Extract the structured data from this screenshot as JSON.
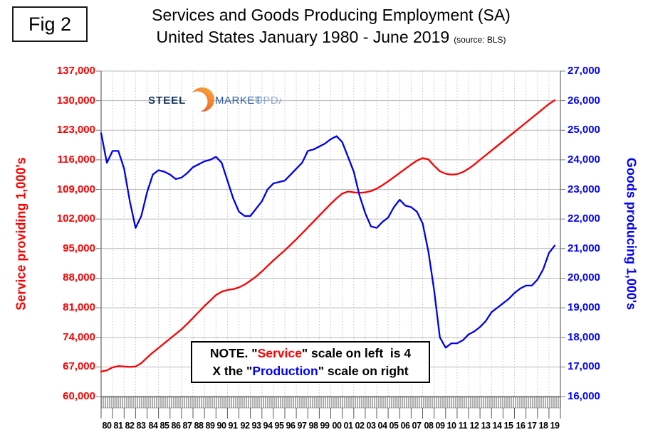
{
  "header": {
    "fig_label": "Fig 2",
    "title_line1": "Services and Goods Producing Employment (SA)",
    "title_line2": "United States January 1980 - June 2019",
    "source": "(source: BLS)"
  },
  "logo": {
    "steel": "STEEL",
    "market": "MARKET",
    "update": "UPDATE",
    "crescent_color_top": "#f9a13a",
    "crescent_color_bottom": "#e44d26"
  },
  "note": {
    "line1_prefix": "NOTE. \"",
    "service_word": "Service",
    "line1_suffix": "\" scale on left  is 4",
    "line2_prefix": "X the \"",
    "production_word": "Production",
    "line2_suffix": "\" scale on right"
  },
  "chart_data": {
    "type": "line",
    "title": "Services and Goods Producing Employment (SA), United States January 1980 - June 2019",
    "grid": true,
    "legend": false,
    "x_note": "semi-annual samples, Jan 1980 through Jun 2019",
    "x_start_year": 1980,
    "x_interval_years": 0.5,
    "left_axis": {
      "label": "Service providing 1,000's",
      "min": 60000,
      "max": 137000,
      "step": 7000,
      "color": "#ff0000",
      "ticks": [
        137000,
        130000,
        123000,
        116000,
        109000,
        102000,
        95000,
        88000,
        81000,
        74000,
        67000,
        60000
      ]
    },
    "right_axis": {
      "label": "Goods producing 1,000's",
      "min": 16000,
      "max": 27000,
      "step": 1000,
      "color": "#0000ff",
      "ticks": [
        27000,
        26000,
        25000,
        24000,
        23000,
        22000,
        21000,
        20000,
        19000,
        18000,
        17000,
        16000
      ]
    },
    "x_axis": {
      "tick_labels": [
        "80",
        "81",
        "82",
        "83",
        "84",
        "85",
        "86",
        "87",
        "88",
        "89",
        "90",
        "91",
        "92",
        "93",
        "94",
        "95",
        "96",
        "97",
        "98",
        "99",
        "00",
        "01",
        "02",
        "03",
        "04",
        "05",
        "06",
        "07",
        "08",
        "09",
        "10",
        "11",
        "12",
        "13",
        "14",
        "15",
        "16",
        "17",
        "18",
        "19"
      ]
    },
    "series": [
      {
        "name": "Service providing",
        "axis": "left",
        "color": "#ff0000",
        "values": [
          65900,
          66200,
          66900,
          67200,
          67100,
          67000,
          67100,
          67900,
          69200,
          70400,
          71500,
          72600,
          73700,
          74800,
          75900,
          77200,
          78600,
          80000,
          81400,
          82700,
          84000,
          84800,
          85200,
          85400,
          85800,
          86500,
          87400,
          88400,
          89600,
          90900,
          92200,
          93400,
          94600,
          95900,
          97200,
          98600,
          100000,
          101400,
          102800,
          104200,
          105600,
          106900,
          108000,
          108500,
          108300,
          108200,
          108300,
          108600,
          109200,
          110000,
          110900,
          111900,
          112900,
          113900,
          114900,
          115800,
          116400,
          116100,
          114600,
          113300,
          112700,
          112500,
          112600,
          113100,
          113900,
          114900,
          116000,
          117100,
          118200,
          119300,
          120400,
          121500,
          122600,
          123700,
          124800,
          125900,
          127000,
          128100,
          129200,
          130100
        ]
      },
      {
        "name": "Goods producing",
        "axis": "right",
        "color": "#0000ee",
        "values": [
          24900,
          23900,
          24300,
          24300,
          23700,
          22600,
          21700,
          22100,
          22900,
          23500,
          23650,
          23600,
          23500,
          23350,
          23400,
          23550,
          23750,
          23850,
          23950,
          24000,
          24100,
          23900,
          23300,
          22700,
          22250,
          22100,
          22100,
          22350,
          22600,
          23000,
          23200,
          23250,
          23300,
          23500,
          23700,
          23900,
          24300,
          24350,
          24450,
          24550,
          24700,
          24800,
          24600,
          24100,
          23600,
          22800,
          22200,
          21750,
          21700,
          21900,
          22050,
          22400,
          22650,
          22450,
          22400,
          22250,
          21850,
          20900,
          19600,
          18000,
          17650,
          17800,
          17800,
          17900,
          18100,
          18200,
          18350,
          18550,
          18850,
          19000,
          19150,
          19300,
          19500,
          19650,
          19750,
          19750,
          19950,
          20300,
          20850,
          21100
        ]
      }
    ]
  }
}
